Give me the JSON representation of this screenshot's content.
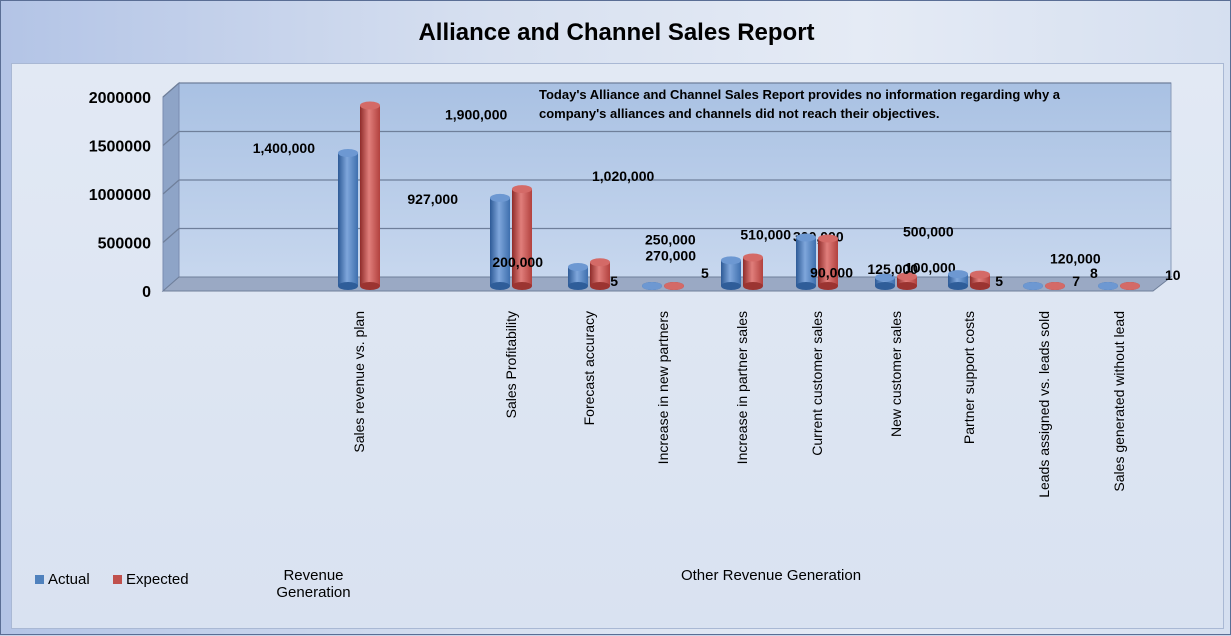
{
  "chart_data": {
    "type": "bar",
    "title": "Alliance and Channel Sales Report",
    "annotation": "Today's Alliance and Channel Sales Report provides no information regarding why a company's alliances and channels did not reach their objectives.",
    "categories": [
      "Sales revenue vs. plan",
      "Sales Profitability",
      "Forecast accuracy",
      "Increase in new partners",
      "Increase in partner sales",
      "Current customer sales",
      "New customer sales",
      "Partner support costs",
      "Leads assigned vs. leads sold",
      "Sales generated without lead"
    ],
    "series": [
      {
        "name": "Actual",
        "color": "#4f81bd",
        "values": [
          1400000,
          927000,
          200000,
          5,
          270000,
          510000,
          90000,
          125000,
          5,
          7
        ],
        "labels": [
          "1,400,000",
          "927,000",
          "200,000",
          "5",
          "270,000",
          "510,000",
          "90,000",
          "125,000",
          "5",
          "7"
        ]
      },
      {
        "name": "Expected",
        "color": "#c0504d",
        "values": [
          1900000,
          1020000,
          250000,
          5,
          300000,
          500000,
          100000,
          120000,
          8,
          10
        ],
        "labels": [
          "1,900,000",
          "1,020,000",
          "250,000",
          "5",
          "300,000",
          "500,000",
          "100,000",
          "120,000",
          "8",
          "10"
        ]
      }
    ],
    "yticks": [
      "2000000",
      "1500000",
      "1000000",
      "500000",
      "0"
    ],
    "ylim": [
      0,
      2000000
    ],
    "grid": true,
    "legend": "bottom-left",
    "groups": [
      {
        "label_line1": "Revenue",
        "label_line2": "Generation"
      },
      {
        "label_line1": "Other Revenue Generation",
        "label_line2": ""
      }
    ]
  }
}
